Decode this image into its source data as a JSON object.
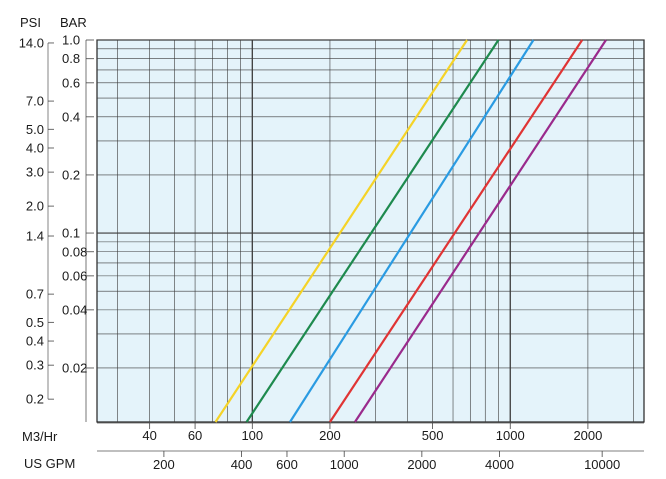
{
  "chart_data": {
    "type": "line",
    "axis_headers": {
      "psi": "PSI",
      "bar": "BAR",
      "m3hr": "M3/Hr",
      "usgpm": "US GPM"
    },
    "log_scale": {
      "x": true,
      "y": true
    },
    "grid": true,
    "background_color": "#e4f3fa",
    "grid_color": "#3a3a3a",
    "y_bar_range": [
      0.0105,
      1.0
    ],
    "x_m3hr_range": [
      25,
      3300
    ],
    "bar_ticks": [
      {
        "v": 1.0,
        "label": "1.0"
      },
      {
        "v": 0.8,
        "label": "0.8"
      },
      {
        "v": 0.6,
        "label": "0.6"
      },
      {
        "v": 0.4,
        "label": "0.4"
      },
      {
        "v": 0.2,
        "label": "0.2"
      },
      {
        "v": 0.1,
        "label": "0.1"
      },
      {
        "v": 0.08,
        "label": "0.08"
      },
      {
        "v": 0.06,
        "label": "0.06"
      },
      {
        "v": 0.04,
        "label": "0.04"
      },
      {
        "v": 0.02,
        "label": "0.02"
      }
    ],
    "psi_ticks": [
      {
        "v": 14.0,
        "label": "14.0"
      },
      {
        "v": 7.0,
        "label": "7.0"
      },
      {
        "v": 5.0,
        "label": "5.0"
      },
      {
        "v": 4.0,
        "label": "4.0"
      },
      {
        "v": 3.0,
        "label": "3.0"
      },
      {
        "v": 2.0,
        "label": "2.0"
      },
      {
        "v": 1.4,
        "label": "1.4"
      },
      {
        "v": 0.7,
        "label": "0.7"
      },
      {
        "v": 0.5,
        "label": "0.5"
      },
      {
        "v": 0.4,
        "label": "0.4"
      },
      {
        "v": 0.3,
        "label": "0.3"
      },
      {
        "v": 0.2,
        "label": "0.2"
      }
    ],
    "m3hr_ticks": [
      {
        "v": 40,
        "label": "40"
      },
      {
        "v": 60,
        "label": "60"
      },
      {
        "v": 100,
        "label": "100"
      },
      {
        "v": 200,
        "label": "200"
      },
      {
        "v": 500,
        "label": "500"
      },
      {
        "v": 1000,
        "label": "1000"
      },
      {
        "v": 2000,
        "label": "2000"
      }
    ],
    "gpm_ticks": [
      {
        "v": 200,
        "label": "200"
      },
      {
        "v": 400,
        "label": "400"
      },
      {
        "v": 600,
        "label": "600"
      },
      {
        "v": 1000,
        "label": "1000"
      },
      {
        "v": 2000,
        "label": "2000"
      },
      {
        "v": 4000,
        "label": "4000"
      },
      {
        "v": 10000,
        "label": "10000"
      }
    ],
    "series": [
      {
        "color": "#f5d327",
        "points": [
          [
            72,
            0.0105
          ],
          [
            680,
            1.0
          ]
        ]
      },
      {
        "color": "#1e8a4e",
        "points": [
          [
            95,
            0.0105
          ],
          [
            900,
            1.0
          ]
        ]
      },
      {
        "color": "#2a9be2",
        "points": [
          [
            140,
            0.0105
          ],
          [
            1230,
            1.0
          ]
        ]
      },
      {
        "color": "#e03434",
        "points": [
          [
            200,
            0.0105
          ],
          [
            1900,
            1.0
          ]
        ]
      },
      {
        "color": "#9a2a8c",
        "points": [
          [
            250,
            0.0105
          ],
          [
            2350,
            1.0
          ]
        ]
      }
    ]
  }
}
